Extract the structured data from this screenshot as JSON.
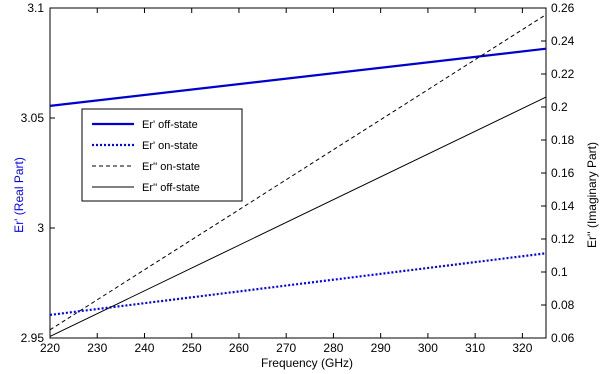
{
  "chart_data": {
    "type": "line",
    "title": "",
    "xlabel": "Frequency (GHz)",
    "ylabel_left": "Er' (Real Part)",
    "ylabel_right": "Er'' (Imaginary Part)",
    "xlim": [
      220,
      325
    ],
    "ylim_left": [
      2.95,
      3.1
    ],
    "ylim_right": [
      0.06,
      0.26
    ],
    "x_ticks": [
      220,
      230,
      240,
      250,
      260,
      270,
      280,
      290,
      300,
      310,
      320
    ],
    "y_ticks_left": [
      "2.95",
      "3",
      "3.05",
      "3.1"
    ],
    "y_ticks_right": [
      "0.06",
      "0.08",
      "0.1",
      "0.12",
      "0.14",
      "0.16",
      "0.18",
      "0.2",
      "0.22",
      "0.24",
      "0.26"
    ],
    "grid": false,
    "legend_position": "center-left",
    "series": [
      {
        "name": "Er' off-state",
        "axis": "left",
        "color": "#0000cc",
        "style": "solid-thick",
        "x": [
          220,
          325
        ],
        "y": [
          3.0555,
          3.0815
        ]
      },
      {
        "name": "Er' on-state",
        "axis": "left",
        "color": "#0000ff",
        "style": "dotted",
        "x": [
          220,
          325
        ],
        "y": [
          2.9605,
          2.9885
        ]
      },
      {
        "name": "Er'' on-state",
        "axis": "right",
        "color": "#000000",
        "style": "dashed",
        "x": [
          220,
          325
        ],
        "y": [
          0.065,
          0.256
        ]
      },
      {
        "name": "Er'' off-state",
        "axis": "right",
        "color": "#000000",
        "style": "solid-thin",
        "x": [
          220,
          325
        ],
        "y": [
          0.061,
          0.206
        ]
      }
    ]
  }
}
